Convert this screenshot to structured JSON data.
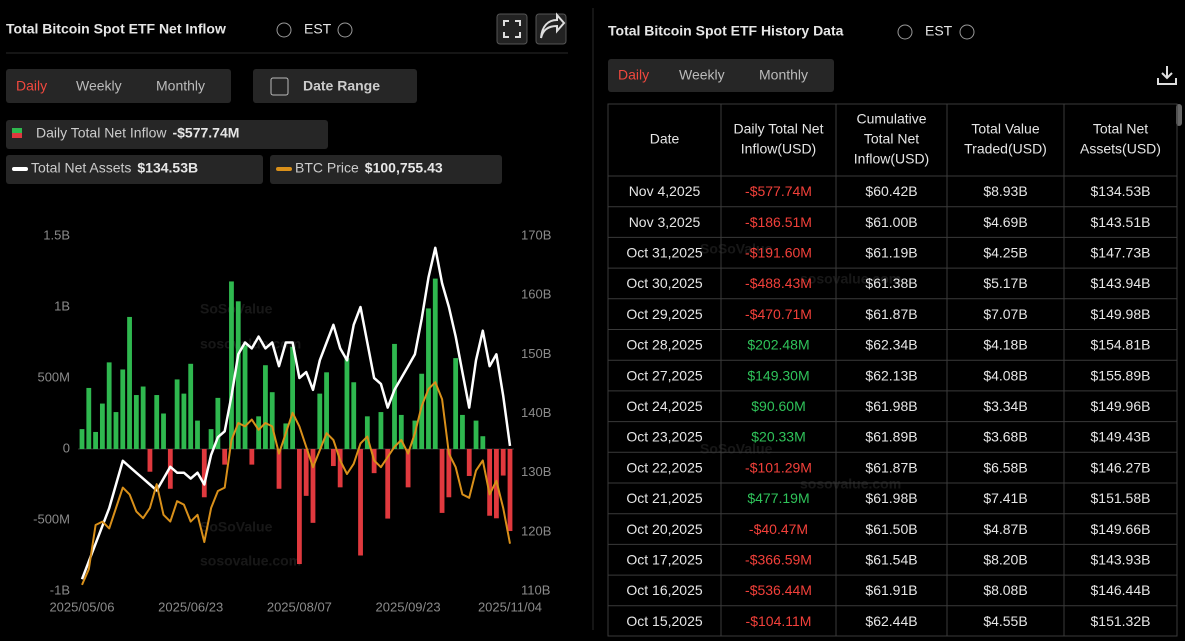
{
  "left_panel": {
    "title": "Total Bitcoin Spot ETF Net Inflow",
    "timezone": "EST",
    "date_range": "Date Range"
  },
  "tabs": [
    "Daily",
    "Weekly",
    "Monthly"
  ],
  "watermark": [
    "SoSoValue",
    "sosovalue.com"
  ],
  "chart_data": {
    "type": "bar",
    "categories": [
      "2025/05/06",
      null,
      null,
      null,
      null,
      null,
      null,
      null,
      null,
      null,
      null,
      null,
      null,
      null,
      null,
      null,
      "2025/06/23",
      null,
      null,
      null,
      null,
      null,
      null,
      null,
      null,
      null,
      null,
      null,
      null,
      null,
      null,
      null,
      "2025/08/07",
      null,
      null,
      null,
      null,
      null,
      null,
      null,
      null,
      null,
      null,
      null,
      null,
      null,
      null,
      null,
      "2025/09/23",
      null,
      null,
      null,
      null,
      null,
      null,
      null,
      null,
      null,
      null,
      null,
      null,
      null,
      null,
      "2025/11/04"
    ],
    "series": [
      {
        "name": "Daily Total Net Inflow",
        "current": "-$577.74M",
        "positive_color": "#2fb84f",
        "negative_color": "#e0393e",
        "values": [
          140,
          430,
          120,
          320,
          610,
          260,
          560,
          930,
          380,
          440,
          -160,
          380,
          250,
          -280,
          490,
          390,
          600,
          200,
          -340,
          140,
          360,
          -110,
          1180,
          1040,
          730,
          -110,
          230,
          590,
          400,
          -280,
          180,
          720,
          -810,
          -330,
          -520,
          390,
          540,
          -120,
          -270,
          640,
          470,
          -750,
          230,
          -170,
          260,
          -490,
          740,
          240,
          -270,
          200,
          530,
          990,
          1200,
          -450,
          -340,
          640,
          240,
          -190,
          200,
          90,
          -470,
          -488,
          -187,
          -577.74
        ]
      },
      {
        "name": "Total Net Assets",
        "current": "$134.53B",
        "color": "#ffffff",
        "axis": "y2",
        "values": [
          112,
          115,
          118,
          121,
          124,
          128,
          132,
          131,
          130,
          129,
          128,
          127,
          129,
          131,
          130,
          130,
          129,
          130,
          128,
          133,
          136,
          137,
          143,
          150,
          152,
          151,
          153,
          151,
          152,
          148,
          152,
          152,
          146,
          147,
          144,
          149,
          152,
          155,
          151,
          149,
          155,
          158,
          152,
          146,
          145,
          141,
          144,
          146,
          148,
          150,
          156,
          163,
          168,
          162,
          158,
          153,
          147,
          141,
          149,
          154,
          148,
          150,
          143,
          134.53
        ]
      },
      {
        "name": "BTC Price",
        "current": "$100,755.43",
        "color": "#d9901a",
        "axis": "y3",
        "values": [
          94700,
          97000,
          103500,
          104000,
          103000,
          106000,
          109000,
          108000,
          105500,
          104500,
          106000,
          109500,
          105000,
          104000,
          107000,
          106500,
          104000,
          105000,
          101000,
          106000,
          108500,
          109000,
          116000,
          118500,
          118000,
          119000,
          117500,
          118500,
          118000,
          114000,
          117000,
          120000,
          118000,
          115000,
          112000,
          114500,
          117000,
          116000,
          113000,
          111000,
          112500,
          115500,
          116500,
          113000,
          112000,
          113500,
          115000,
          116000,
          114000,
          117000,
          121000,
          123500,
          124500,
          122000,
          114000,
          112000,
          108000,
          107500,
          111500,
          113000,
          108000,
          110000,
          106000,
          100755.43
        ]
      }
    ],
    "ylim": [
      -1000,
      1500
    ],
    "yticks": [
      {
        "value": -1000,
        "label": "-1B"
      },
      {
        "value": -500,
        "label": "-500M"
      },
      0,
      {
        "value": 500,
        "label": "500M"
      },
      {
        "value": 1000,
        "label": "1B"
      },
      {
        "value": 1500,
        "label": "1.5B"
      }
    ],
    "y2lim": [
      110,
      170
    ],
    "y2ticks": [
      {
        "value": 110,
        "label": "110B"
      },
      {
        "value": 120,
        "label": "120B"
      },
      {
        "value": 130,
        "label": "130B"
      },
      {
        "value": 140,
        "label": "140B"
      },
      {
        "value": 150,
        "label": "150B"
      },
      {
        "value": 160,
        "label": "160B"
      },
      {
        "value": 170,
        "label": "170B"
      }
    ],
    "y3lim": [
      93800,
      146000
    ],
    "grid": false
  },
  "table": {
    "title": "Total Bitcoin Spot ETF History Data",
    "timezone": "EST",
    "columns": [
      [
        "Date"
      ],
      [
        "Daily Total Net",
        "Inflow(USD)"
      ],
      [
        "Cumulative",
        "Total Net",
        "Inflow(USD)"
      ],
      [
        "Total Value",
        "Traded(USD)"
      ],
      [
        "Total Net",
        "Assets(USD)"
      ]
    ],
    "rows": [
      [
        "Nov 4,2025",
        "-$577.74M",
        "$60.42B",
        "$8.93B",
        "$134.53B"
      ],
      [
        "Nov 3,2025",
        "-$186.51M",
        "$61.00B",
        "$4.69B",
        "$143.51B"
      ],
      [
        "Oct 31,2025",
        "-$191.60M",
        "$61.19B",
        "$4.25B",
        "$147.73B"
      ],
      [
        "Oct 30,2025",
        "-$488.43M",
        "$61.38B",
        "$5.17B",
        "$143.94B"
      ],
      [
        "Oct 29,2025",
        "-$470.71M",
        "$61.87B",
        "$7.07B",
        "$149.98B"
      ],
      [
        "Oct 28,2025",
        "$202.48M",
        "$62.34B",
        "$4.18B",
        "$154.81B"
      ],
      [
        "Oct 27,2025",
        "$149.30M",
        "$62.13B",
        "$4.08B",
        "$155.89B"
      ],
      [
        "Oct 24,2025",
        "$90.60M",
        "$61.98B",
        "$3.34B",
        "$149.96B"
      ],
      [
        "Oct 23,2025",
        "$20.33M",
        "$61.89B",
        "$3.68B",
        "$149.43B"
      ],
      [
        "Oct 22,2025",
        "-$101.29M",
        "$61.87B",
        "$6.58B",
        "$146.27B"
      ],
      [
        "Oct 21,2025",
        "$477.19M",
        "$61.98B",
        "$7.41B",
        "$151.58B"
      ],
      [
        "Oct 20,2025",
        "-$40.47M",
        "$61.50B",
        "$4.87B",
        "$149.66B"
      ],
      [
        "Oct 17,2025",
        "-$366.59M",
        "$61.54B",
        "$8.20B",
        "$143.93B"
      ],
      [
        "Oct 16,2025",
        "-$536.44M",
        "$61.91B",
        "$8.08B",
        "$146.44B"
      ],
      [
        "Oct 15,2025",
        "-$104.11M",
        "$62.44B",
        "$4.55B",
        "$151.32B"
      ]
    ]
  }
}
